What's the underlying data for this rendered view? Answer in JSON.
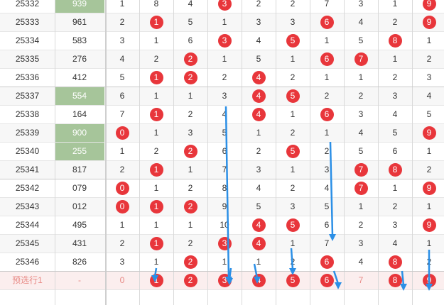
{
  "rows": [
    {
      "issue": "25332",
      "sum": "939",
      "sum_hl": true,
      "cells": [
        {
          "v": "1"
        },
        {
          "v": "8"
        },
        {
          "v": "4"
        },
        {
          "v": "3",
          "b": true
        },
        {
          "v": "2"
        },
        {
          "v": "2"
        },
        {
          "v": "7"
        },
        {
          "v": "3"
        },
        {
          "v": "1"
        },
        {
          "v": "9",
          "b": true
        }
      ]
    },
    {
      "issue": "25333",
      "sum": "961",
      "sum_hl": false,
      "cells": [
        {
          "v": "2"
        },
        {
          "v": "1",
          "b": true
        },
        {
          "v": "5"
        },
        {
          "v": "1"
        },
        {
          "v": "3"
        },
        {
          "v": "3"
        },
        {
          "v": "6",
          "b": true
        },
        {
          "v": "4"
        },
        {
          "v": "2"
        },
        {
          "v": "9",
          "b": true
        }
      ]
    },
    {
      "issue": "25334",
      "sum": "583",
      "sum_hl": false,
      "cells": [
        {
          "v": "3"
        },
        {
          "v": "1"
        },
        {
          "v": "6"
        },
        {
          "v": "3",
          "b": true
        },
        {
          "v": "4"
        },
        {
          "v": "5",
          "b": true
        },
        {
          "v": "1"
        },
        {
          "v": "5"
        },
        {
          "v": "8",
          "b": true
        },
        {
          "v": "1"
        }
      ]
    },
    {
      "issue": "25335",
      "sum": "276",
      "sum_hl": false,
      "cells": [
        {
          "v": "4"
        },
        {
          "v": "2"
        },
        {
          "v": "2",
          "b": true
        },
        {
          "v": "1"
        },
        {
          "v": "5"
        },
        {
          "v": "1"
        },
        {
          "v": "6",
          "b": true
        },
        {
          "v": "7",
          "b": true
        },
        {
          "v": "1"
        },
        {
          "v": "2"
        }
      ]
    },
    {
      "issue": "25336",
      "sum": "412",
      "sum_hl": false,
      "cells": [
        {
          "v": "5"
        },
        {
          "v": "1",
          "b": true
        },
        {
          "v": "2",
          "b": true
        },
        {
          "v": "2"
        },
        {
          "v": "4",
          "b": true
        },
        {
          "v": "2"
        },
        {
          "v": "1"
        },
        {
          "v": "1"
        },
        {
          "v": "2"
        },
        {
          "v": "3"
        }
      ]
    },
    {
      "issue": "25337",
      "sum": "554",
      "sum_hl": true,
      "cells": [
        {
          "v": "6"
        },
        {
          "v": "1"
        },
        {
          "v": "1"
        },
        {
          "v": "3"
        },
        {
          "v": "4",
          "b": true
        },
        {
          "v": "5",
          "b": true
        },
        {
          "v": "2"
        },
        {
          "v": "2"
        },
        {
          "v": "3"
        },
        {
          "v": "4"
        }
      ]
    },
    {
      "issue": "25338",
      "sum": "164",
      "sum_hl": false,
      "cells": [
        {
          "v": "7"
        },
        {
          "v": "1",
          "b": true
        },
        {
          "v": "2"
        },
        {
          "v": "4"
        },
        {
          "v": "4",
          "b": true
        },
        {
          "v": "1"
        },
        {
          "v": "6",
          "b": true
        },
        {
          "v": "3"
        },
        {
          "v": "4"
        },
        {
          "v": "5"
        }
      ]
    },
    {
      "issue": "25339",
      "sum": "900",
      "sum_hl": true,
      "cells": [
        {
          "v": "0",
          "b": true
        },
        {
          "v": "1"
        },
        {
          "v": "3"
        },
        {
          "v": "5"
        },
        {
          "v": "1"
        },
        {
          "v": "2"
        },
        {
          "v": "1"
        },
        {
          "v": "4"
        },
        {
          "v": "5"
        },
        {
          "v": "9",
          "b": true
        }
      ]
    },
    {
      "issue": "25340",
      "sum": "255",
      "sum_hl": true,
      "cells": [
        {
          "v": "1"
        },
        {
          "v": "2"
        },
        {
          "v": "2",
          "b": true
        },
        {
          "v": "6"
        },
        {
          "v": "2"
        },
        {
          "v": "5",
          "b": true
        },
        {
          "v": "2"
        },
        {
          "v": "5"
        },
        {
          "v": "6"
        },
        {
          "v": "1"
        }
      ]
    },
    {
      "issue": "25341",
      "sum": "817",
      "sum_hl": false,
      "cells": [
        {
          "v": "2"
        },
        {
          "v": "1",
          "b": true
        },
        {
          "v": "1"
        },
        {
          "v": "7"
        },
        {
          "v": "3"
        },
        {
          "v": "1"
        },
        {
          "v": "3"
        },
        {
          "v": "7",
          "b": true
        },
        {
          "v": "8",
          "b": true
        },
        {
          "v": "2"
        }
      ]
    },
    {
      "issue": "25342",
      "sum": "079",
      "sum_hl": false,
      "cells": [
        {
          "v": "0",
          "b": true
        },
        {
          "v": "1"
        },
        {
          "v": "2"
        },
        {
          "v": "8"
        },
        {
          "v": "4"
        },
        {
          "v": "2"
        },
        {
          "v": "4"
        },
        {
          "v": "7",
          "b": true
        },
        {
          "v": "1"
        },
        {
          "v": "9",
          "b": true
        }
      ]
    },
    {
      "issue": "25343",
      "sum": "012",
      "sum_hl": false,
      "cells": [
        {
          "v": "0",
          "b": true
        },
        {
          "v": "1",
          "b": true
        },
        {
          "v": "2",
          "b": true
        },
        {
          "v": "9"
        },
        {
          "v": "5"
        },
        {
          "v": "3"
        },
        {
          "v": "5"
        },
        {
          "v": "1"
        },
        {
          "v": "2"
        },
        {
          "v": "1"
        }
      ]
    },
    {
      "issue": "25344",
      "sum": "495",
      "sum_hl": false,
      "cells": [
        {
          "v": "1"
        },
        {
          "v": "1"
        },
        {
          "v": "1"
        },
        {
          "v": "10"
        },
        {
          "v": "4",
          "b": true
        },
        {
          "v": "5",
          "b": true
        },
        {
          "v": "6"
        },
        {
          "v": "2"
        },
        {
          "v": "3"
        },
        {
          "v": "9",
          "b": true
        }
      ]
    },
    {
      "issue": "25345",
      "sum": "431",
      "sum_hl": false,
      "cells": [
        {
          "v": "2"
        },
        {
          "v": "1",
          "b": true
        },
        {
          "v": "2"
        },
        {
          "v": "3",
          "b": true
        },
        {
          "v": "4",
          "b": true
        },
        {
          "v": "1"
        },
        {
          "v": "7"
        },
        {
          "v": "3"
        },
        {
          "v": "4"
        },
        {
          "v": "1"
        }
      ]
    },
    {
      "issue": "25346",
      "sum": "826",
      "sum_hl": false,
      "cells": [
        {
          "v": "3"
        },
        {
          "v": "1"
        },
        {
          "v": "2",
          "b": true
        },
        {
          "v": "1"
        },
        {
          "v": "1"
        },
        {
          "v": "2"
        },
        {
          "v": "6",
          "b": true
        },
        {
          "v": "4"
        },
        {
          "v": "8",
          "b": true
        },
        {
          "v": "2"
        }
      ]
    }
  ],
  "predict_row": {
    "issue": "预选行1",
    "sum": "-",
    "cells": [
      {
        "v": "0"
      },
      {
        "v": "1",
        "b": true
      },
      {
        "v": "2",
        "b": true
      },
      {
        "v": "3",
        "b": true
      },
      {
        "v": "4",
        "b": true
      },
      {
        "v": "5",
        "b": true
      },
      {
        "v": "6",
        "b": true
      },
      {
        "v": "7"
      },
      {
        "v": "8",
        "b": true
      },
      {
        "v": "9",
        "b": true
      }
    ]
  },
  "colors": {
    "ball": "#e8363b",
    "highlight_sum": "#a6c59a",
    "arrow": "#2b8fe6",
    "predict_text": "#e88a86"
  },
  "icons": {
    "arrow": "down-arrow-icon"
  }
}
